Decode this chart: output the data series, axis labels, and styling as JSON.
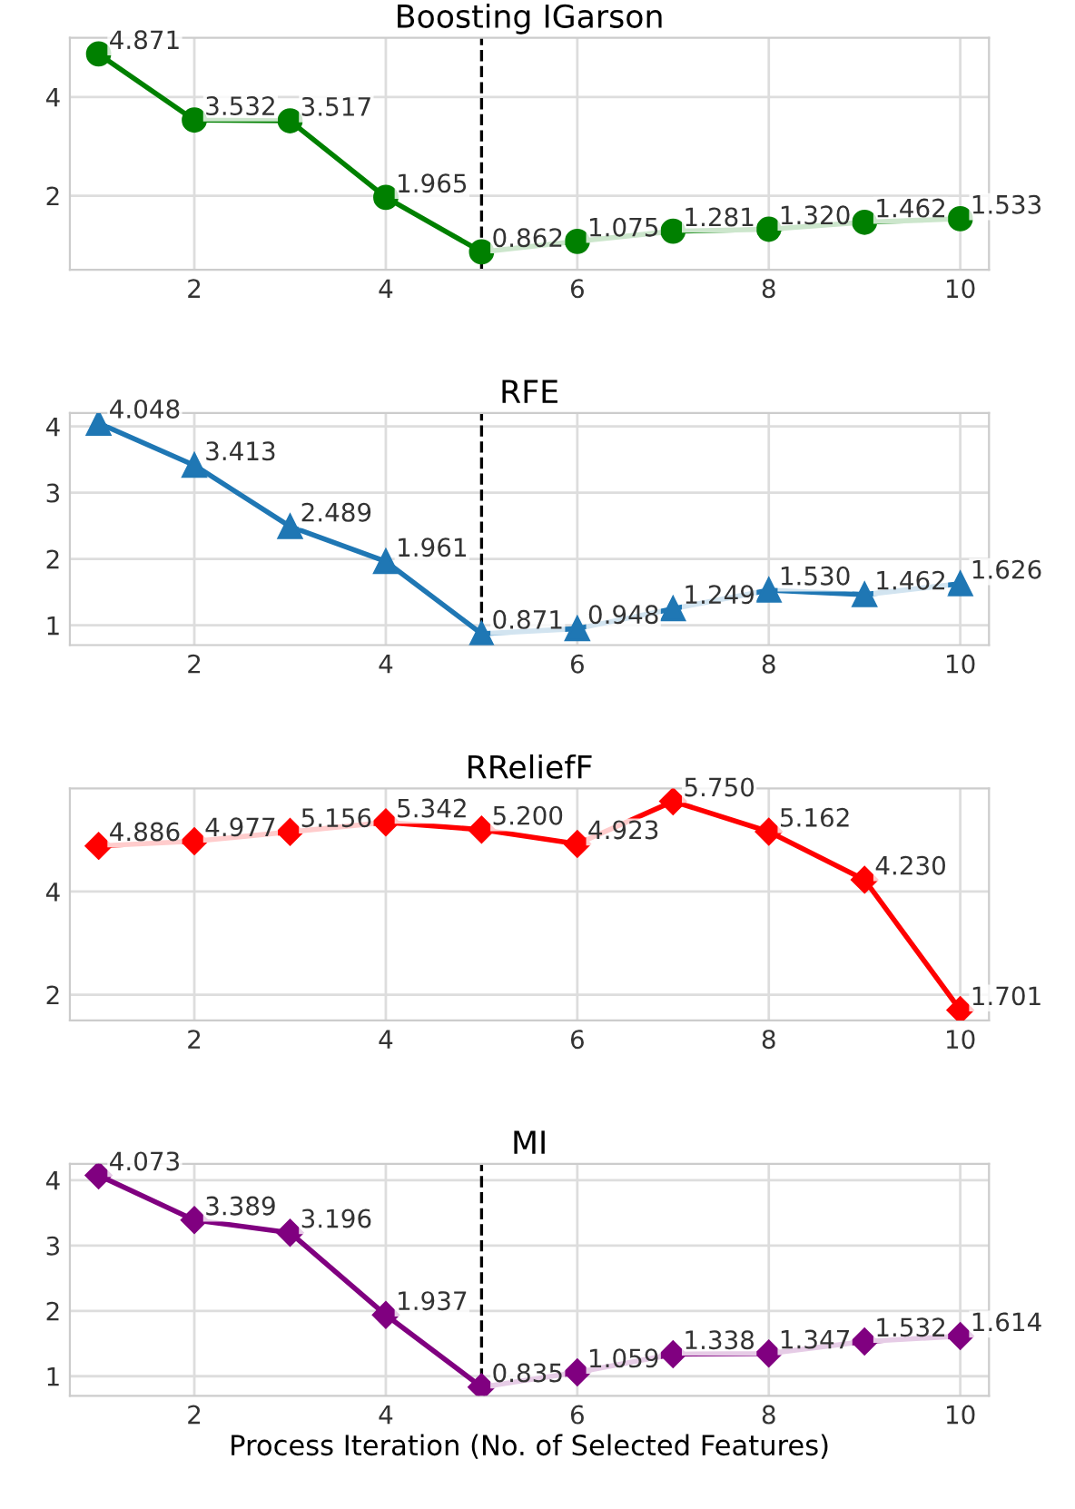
{
  "chart_data": [
    {
      "type": "line",
      "title": "Boosting IGarson",
      "x": [
        1,
        2,
        3,
        4,
        5,
        6,
        7,
        8,
        9,
        10
      ],
      "values": [
        4.871,
        3.532,
        3.517,
        1.965,
        0.862,
        1.075,
        1.281,
        1.32,
        1.462,
        1.533
      ],
      "value_labels": [
        "4.871",
        "3.532",
        "3.517",
        "1.965",
        "0.862",
        "1.075",
        "1.281",
        "1.320",
        "1.462",
        "1.533"
      ],
      "color": "#008000",
      "marker": "circle",
      "xlim": [
        0.7,
        10.3
      ],
      "xticks": [
        2,
        4,
        6,
        8,
        10
      ],
      "ylim": [
        0.5,
        5.2
      ],
      "yticks": [
        2,
        4
      ],
      "grid": true,
      "ref_lines": [
        {
          "axis": "x",
          "value": 5,
          "color": "#000000",
          "line_style": "dashed"
        }
      ]
    },
    {
      "type": "line",
      "title": "RFE",
      "x": [
        1,
        2,
        3,
        4,
        5,
        6,
        7,
        8,
        9,
        10
      ],
      "values": [
        4.048,
        3.413,
        2.489,
        1.961,
        0.871,
        0.948,
        1.249,
        1.53,
        1.462,
        1.626
      ],
      "value_labels": [
        "4.048",
        "3.413",
        "2.489",
        "1.961",
        "0.871",
        "0.948",
        "1.249",
        "1.530",
        "1.462",
        "1.626"
      ],
      "color": "#1f77b4",
      "marker": "triangle",
      "xlim": [
        0.7,
        10.3
      ],
      "xticks": [
        2,
        4,
        6,
        8,
        10
      ],
      "ylim": [
        0.7,
        4.2
      ],
      "yticks": [
        1,
        2,
        3,
        4
      ],
      "grid": true,
      "ref_lines": [
        {
          "axis": "x",
          "value": 5,
          "color": "#000000",
          "line_style": "dashed"
        }
      ]
    },
    {
      "type": "line",
      "title": "RReliefF",
      "x": [
        1,
        2,
        3,
        4,
        5,
        6,
        7,
        8,
        9,
        10
      ],
      "values": [
        4.886,
        4.977,
        5.156,
        5.342,
        5.2,
        4.923,
        5.75,
        5.162,
        4.23,
        1.701
      ],
      "value_labels": [
        "4.886",
        "4.977",
        "5.156",
        "5.342",
        "5.200",
        "4.923",
        "5.750",
        "5.162",
        "4.230",
        "1.701"
      ],
      "color": "#ff0000",
      "marker": "diamond",
      "xlim": [
        0.7,
        10.3
      ],
      "xticks": [
        2,
        4,
        6,
        8,
        10
      ],
      "ylim": [
        1.5,
        6.0
      ],
      "yticks": [
        2,
        4
      ],
      "grid": true
    },
    {
      "type": "line",
      "title": "MI",
      "xlabel": "Process Iteration (No. of Selected Features)",
      "x": [
        1,
        2,
        3,
        4,
        5,
        6,
        7,
        8,
        9,
        10
      ],
      "values": [
        4.073,
        3.389,
        3.196,
        1.937,
        0.835,
        1.059,
        1.338,
        1.347,
        1.532,
        1.614
      ],
      "value_labels": [
        "4.073",
        "3.389",
        "3.196",
        "1.937",
        "0.835",
        "1.059",
        "1.338",
        "1.347",
        "1.532",
        "1.614"
      ],
      "color": "#800080",
      "marker": "diamond",
      "xlim": [
        0.7,
        10.3
      ],
      "xticks": [
        2,
        4,
        6,
        8,
        10
      ],
      "ylim": [
        0.7,
        4.25
      ],
      "yticks": [
        1,
        2,
        3,
        4
      ],
      "grid": true,
      "ref_lines": [
        {
          "axis": "x",
          "value": 5,
          "color": "#000000",
          "line_style": "dashed"
        }
      ]
    }
  ]
}
